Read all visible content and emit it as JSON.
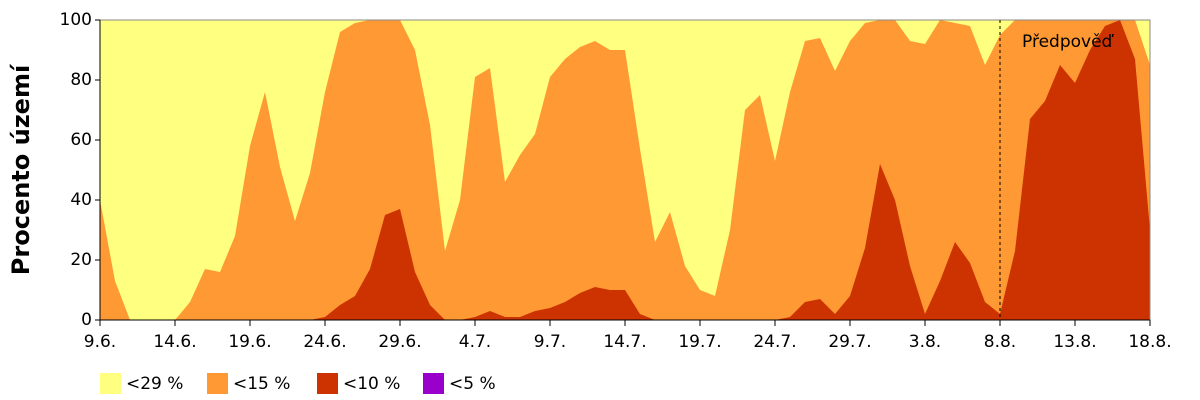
{
  "chart_data": {
    "type": "area",
    "y_label": "Procento území",
    "categories": [
      "9.6.",
      null,
      null,
      null,
      null,
      "14.6.",
      null,
      null,
      null,
      null,
      "19.6.",
      null,
      null,
      null,
      null,
      "24.6.",
      null,
      null,
      null,
      null,
      "29.6.",
      null,
      null,
      null,
      null,
      "4.7.",
      null,
      null,
      null,
      null,
      "9.7.",
      null,
      null,
      null,
      null,
      "14.7.",
      null,
      null,
      null,
      null,
      "19.7.",
      null,
      null,
      null,
      null,
      "24.7.",
      null,
      null,
      null,
      null,
      "29.7.",
      null,
      null,
      null,
      null,
      "3.8.",
      null,
      null,
      null,
      null,
      "8.8.",
      null,
      null,
      null,
      null,
      "13.8.",
      null,
      null,
      null,
      null,
      "18.8."
    ],
    "forecast_start": "8.8.",
    "forecast_label": "Předpověď",
    "ylim": [
      0,
      100
    ],
    "yticks": [
      0,
      20,
      40,
      60,
      80,
      100
    ],
    "series": [
      {
        "name": "<29 %",
        "color": "#ffff80",
        "values": [
          100,
          100,
          100,
          100,
          100,
          100,
          100,
          100,
          100,
          100,
          100,
          100,
          100,
          100,
          100,
          100,
          100,
          100,
          100,
          100,
          100,
          100,
          100,
          100,
          100,
          100,
          100,
          100,
          100,
          100,
          100,
          100,
          100,
          100,
          100,
          100,
          100,
          100,
          100,
          100,
          100,
          100,
          100,
          100,
          100,
          100,
          100,
          100,
          100,
          100,
          100,
          100,
          100,
          100,
          100,
          100,
          100,
          100,
          100,
          100,
          100,
          100,
          100,
          100,
          100,
          100,
          100,
          100,
          100,
          100,
          100
        ]
      },
      {
        "name": "<15 %",
        "color": "#ff9933",
        "values": [
          40,
          13,
          0,
          0,
          0,
          0,
          6,
          17,
          16,
          28,
          58,
          76,
          51,
          33,
          49,
          76,
          96,
          99,
          100,
          100,
          100,
          90,
          65,
          23,
          40,
          81,
          84,
          46,
          55,
          62,
          81,
          87,
          91,
          93,
          90,
          90,
          57,
          26,
          36,
          18,
          10,
          8,
          30,
          70,
          75,
          53,
          76,
          93,
          94,
          83,
          93,
          99,
          100,
          100,
          93,
          92,
          100,
          99,
          98,
          85,
          95,
          100,
          100,
          100,
          100,
          100,
          100,
          100,
          100,
          100,
          85
        ]
      },
      {
        "name": "<10 %",
        "color": "#cc3300",
        "values": [
          0,
          0,
          0,
          0,
          0,
          0,
          0,
          0,
          0,
          0,
          0,
          0,
          0,
          0,
          0,
          1,
          5,
          8,
          17,
          35,
          37,
          16,
          5,
          0,
          0,
          1,
          3,
          1,
          1,
          3,
          4,
          6,
          9,
          11,
          10,
          10,
          2,
          0,
          0,
          0,
          0,
          0,
          0,
          0,
          0,
          0,
          1,
          6,
          7,
          2,
          8,
          24,
          52,
          40,
          18,
          2,
          13,
          26,
          19,
          6,
          2,
          23,
          67,
          73,
          85,
          79,
          90,
          98,
          100,
          87,
          30
        ]
      },
      {
        "name": "<5 %",
        "color": "#9900cc",
        "values": [
          0,
          0,
          0,
          0,
          0,
          0,
          0,
          0,
          0,
          0,
          0,
          0,
          0,
          0,
          0,
          0,
          0,
          0,
          0,
          0,
          0,
          0,
          0,
          0,
          0,
          0,
          0,
          0,
          0,
          0,
          0,
          0,
          0,
          0,
          0,
          0,
          0,
          0,
          0,
          0,
          0,
          0,
          0,
          0,
          0,
          0,
          0,
          0,
          0,
          0,
          0,
          0,
          0,
          0,
          0,
          0,
          0,
          0,
          0,
          0,
          0,
          0,
          0,
          0,
          0,
          0,
          0,
          0,
          0,
          0,
          0
        ]
      }
    ]
  }
}
